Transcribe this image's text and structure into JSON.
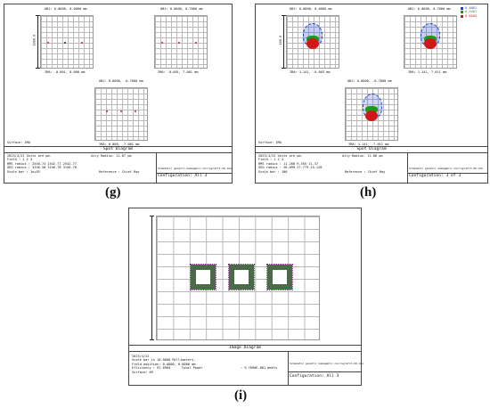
{
  "captions": {
    "g": "(g)",
    "h": "(h)",
    "i": "(i)"
  },
  "panel_g": {
    "fields": [
      {
        "obj": "OBJ: 0.0000, 0.0000 mm",
        "ima": "IMA: -0.001, 0.000 mm"
      },
      {
        "obj": "OBJ: 0.0000, 0.7000 mm",
        "ima": "IMA: -0.001, 7.001 mm"
      },
      {
        "obj": "OBJ: 0.0000, -0.7000 mm",
        "ima": "IMA: 0.000, -7.001 mm"
      }
    ],
    "scale_label": "1000.0",
    "surface": "Surface: IMA",
    "title": "Spot Diagram",
    "info": {
      "date_units": "2023/4/22  Units are µm.",
      "airy": "Airy Radius: 11.87 µm",
      "field_row": "Field    :        1          2          3",
      "rms_row": "RMS radius :    2540.74    2542.77    2542.77",
      "geo_row": "GEO radius :    3156.50    3156.78    3156.78",
      "scale_row": "Scale bar  : 1e+03",
      "reference": "Reference : Chief Ray"
    },
    "file": "Schematic genetic Gamagahic micrografit-XO.zmx",
    "config": "Configuration: All 3"
  },
  "panel_h": {
    "fields": [
      {
        "obj": "OBJ: 0.0000, 0.0000 mm",
        "ima": "IMA: 1.141, -0.003 mm"
      },
      {
        "obj": "OBJ: 0.0000, 0.7000 mm",
        "ima": "IMA: 1.141, 7.011 mm"
      },
      {
        "obj": "OBJ: 0.0000, -0.7000 mm",
        "ima": "IMA: 1.141, -7.011 mm"
      }
    ],
    "legend": [
      {
        "label": "0.4861",
        "color": "#1a3fd6"
      },
      {
        "label": "0.5461",
        "color": "#1a9a1a"
      },
      {
        "label": "0.6563",
        "color": "#d01818"
      }
    ],
    "scale_label": "100.0",
    "surface": "Surface: IMA",
    "title": "Spot Diagram",
    "info": {
      "date_units": "2023/4/22  Units are µm.",
      "airy": "Airy Radius: 11.86 µm",
      "field_row": "Field    :       1         2         3",
      "rms_row": "RMS radius :    11.200     9.555    11.37",
      "geo_row": "GEO radius :    26.099    27.779    25.128",
      "scale_row": "Scale bar  : 100",
      "reference": "Reference : Chief Ray"
    },
    "file": "Schematic genetic Gamagahic micrografit-XO.zmx",
    "config": "Configuration: 3 of 3"
  },
  "panel_i": {
    "title": "Image Diagram",
    "info": {
      "date": "2023/4/22",
      "scale_bar": "Scale bar is 10.0000 Millimeters.",
      "field_position": "Field position: 0.0000, 0.0000 mm",
      "efficiency": "Efficiency      :   97.6904",
      "surface": "Surface: 69",
      "total_power": "Total Power",
      "power_value": ": 9.7690E-001 Watts"
    },
    "file": "Schematic genetic Gamagahic micrografit-XO.zmx",
    "config": "Configuration: All 3"
  }
}
